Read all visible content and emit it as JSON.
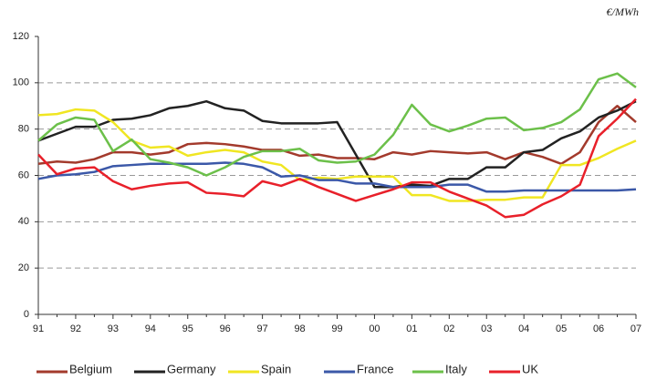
{
  "chart_data": {
    "type": "line",
    "unit_label": "€/MWh",
    "categories": [
      "91",
      null,
      "92",
      null,
      "93",
      null,
      "94",
      null,
      "95",
      null,
      "96",
      null,
      "97",
      null,
      "98",
      null,
      "99",
      null,
      "00",
      null,
      "01",
      null,
      "02",
      null,
      "03",
      null,
      "04",
      null,
      "05",
      null,
      "06",
      null,
      "07"
    ],
    "ylim": [
      0,
      120
    ],
    "yticks": [
      0,
      20,
      40,
      60,
      80,
      100,
      120
    ],
    "grid": true,
    "series": [
      {
        "name": "Belgium",
        "color": "#a33a2c",
        "values": [
          65,
          66,
          65.5,
          67,
          70,
          70,
          69,
          70,
          73.5,
          74,
          73.5,
          72.5,
          71,
          71,
          68.5,
          69,
          67.5,
          67.5,
          67,
          70,
          69,
          70.5,
          70,
          69.5,
          70,
          67,
          70,
          68,
          65,
          70,
          83,
          90,
          83
        ]
      },
      {
        "name": "Germany",
        "color": "#222222",
        "values": [
          75,
          78,
          81,
          81,
          84,
          84.5,
          86,
          89,
          90,
          92,
          89,
          88,
          83.5,
          82.5,
          82.5,
          82.5,
          83,
          69,
          55,
          55,
          56,
          55.5,
          58.5,
          58.5,
          63.5,
          63.5,
          70,
          71,
          76,
          79,
          85,
          88,
          92
        ]
      },
      {
        "name": "Spain",
        "color": "#f0e622",
        "values": [
          86,
          86.5,
          88.5,
          88,
          83,
          75,
          72,
          72.5,
          68.5,
          70,
          71,
          70,
          66,
          64.5,
          58,
          59,
          58.5,
          59.5,
          59.5,
          59.5,
          51.5,
          51.5,
          49,
          49,
          49.5,
          49.5,
          50.5,
          50.5,
          64.5,
          64.5,
          67.5,
          71.5,
          75
        ]
      },
      {
        "name": "France",
        "color": "#3b58a8",
        "values": [
          58.5,
          60,
          60.5,
          61.5,
          64,
          64.5,
          65,
          65,
          65,
          65,
          65.5,
          65,
          63.5,
          59.5,
          60,
          58,
          58,
          56.5,
          56.5,
          55,
          55,
          55,
          56,
          56,
          53,
          53,
          53.5,
          53.5,
          53.5,
          53.5,
          53.5,
          53.5,
          54
        ]
      },
      {
        "name": "Italy",
        "color": "#6cc04a",
        "values": [
          75,
          82,
          85,
          84,
          70.5,
          75.5,
          67,
          65.5,
          63.5,
          60,
          63.5,
          68,
          70.5,
          70.5,
          71.5,
          66.5,
          65.5,
          66,
          69,
          77.5,
          90.5,
          82,
          79,
          81.5,
          84.5,
          85,
          79.5,
          80.5,
          83,
          88.5,
          101.5,
          104,
          98
        ]
      },
      {
        "name": "UK",
        "color": "#e8202a",
        "values": [
          69,
          60.5,
          63,
          63.5,
          57.5,
          54,
          55.5,
          56.5,
          57,
          52.5,
          52,
          51,
          57.5,
          55.5,
          58.5,
          55,
          52,
          49,
          51.5,
          54,
          57,
          57,
          53,
          50,
          47,
          42,
          43,
          47.5,
          51,
          56,
          77,
          84.5,
          93
        ]
      }
    ]
  }
}
